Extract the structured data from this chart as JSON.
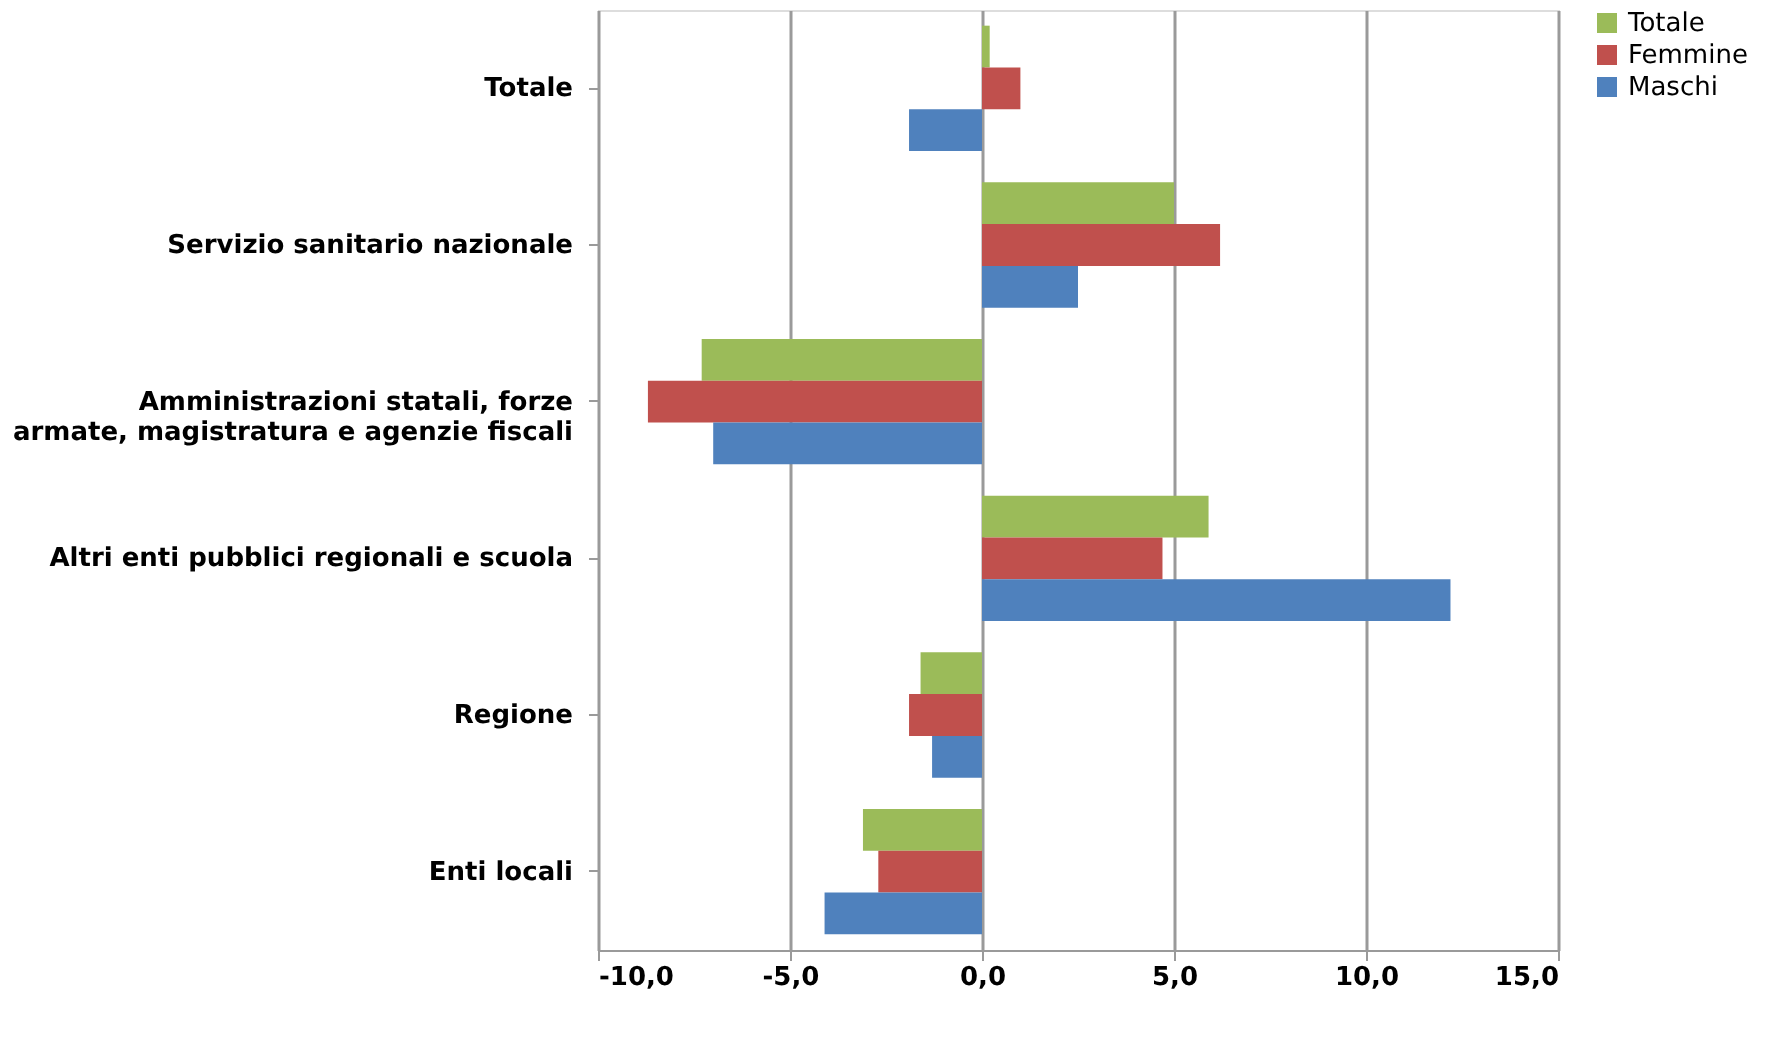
{
  "chart_data": {
    "type": "bar",
    "orientation": "horizontal",
    "categories": [
      "Totale",
      "Servizio sanitario nazionale",
      "Amministrazioni statali, forze armate, magistratura e agenzie fiscali",
      "Altri enti pubblici regionali e scuola",
      "Regione",
      "Enti locali"
    ],
    "series": [
      {
        "name": "Totale",
        "color": "#9bbb59",
        "values": [
          0.2,
          5.0,
          -7.3,
          5.9,
          -1.6,
          -3.1
        ]
      },
      {
        "name": "Femmine",
        "color": "#c0504d",
        "values": [
          1.0,
          6.2,
          -8.7,
          4.7,
          -1.9,
          -2.7
        ]
      },
      {
        "name": "Maschi",
        "color": "#4f81bd",
        "values": [
          -1.9,
          2.5,
          -7.0,
          12.2,
          -1.3,
          -4.1
        ]
      }
    ],
    "xlim": [
      -10,
      15
    ],
    "xticks": [
      {
        "value": -10,
        "label": "-10,0"
      },
      {
        "value": -5,
        "label": "-5,0"
      },
      {
        "value": 0,
        "label": "0,0"
      },
      {
        "value": 5,
        "label": "5,0"
      },
      {
        "value": 10,
        "label": "10,0"
      },
      {
        "value": 15,
        "label": "15,0"
      }
    ],
    "grid": "x",
    "legend": "right"
  }
}
